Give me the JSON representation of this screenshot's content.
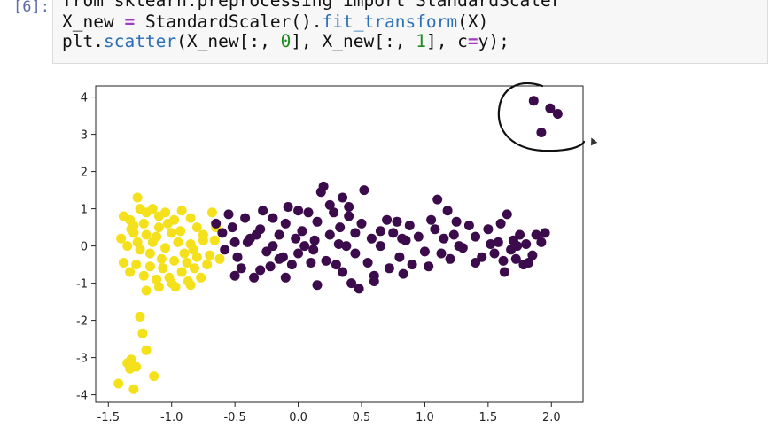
{
  "notebook": {
    "prompt": "[6]:",
    "code": {
      "line1": "from sklearn.preprocessing import StandardScaler",
      "line2_parts": [
        "X_new ",
        "=",
        " StandardScaler().",
        "fit_transform",
        "(X)"
      ],
      "line3_parts": [
        "plt.",
        "scatter",
        "(X_new[:, ",
        "0",
        "], X_new[:, ",
        "1",
        "], c",
        "=",
        "y);"
      ]
    }
  },
  "colors": {
    "yellow": "#f4e11c",
    "purple": "#3b0b4c",
    "axis": "#222222",
    "annotation": "#111111"
  },
  "chart_data": {
    "type": "scatter",
    "xlim": [
      -1.6,
      2.25
    ],
    "ylim": [
      -4.2,
      4.3
    ],
    "x_ticks": [
      -1.5,
      -1.0,
      -0.5,
      0.0,
      0.5,
      1.0,
      1.5,
      2.0
    ],
    "x_tick_labels": [
      "-1.5",
      "-1.0",
      "-0.5",
      "0.0",
      "0.5",
      "1.0",
      "1.5",
      "2.0"
    ],
    "y_ticks": [
      -4,
      -3,
      -2,
      -1,
      0,
      1,
      2,
      3,
      4
    ],
    "y_tick_labels": [
      "-4",
      "-3",
      "-2",
      "-1",
      "0",
      "1",
      "2",
      "3",
      "4"
    ],
    "grid": false,
    "annotation": "hand-drawn circle around outlier points near top-right",
    "series": [
      {
        "color_key": "yellow",
        "points": [
          [
            -1.42,
            -3.7
          ],
          [
            -1.3,
            -3.85
          ],
          [
            -1.33,
            -3.3
          ],
          [
            -1.28,
            -3.25
          ],
          [
            -1.32,
            -3.05
          ],
          [
            -1.35,
            -3.15
          ],
          [
            -1.14,
            -3.5
          ],
          [
            -1.2,
            -2.8
          ],
          [
            -1.23,
            -2.35
          ],
          [
            -1.25,
            -1.9
          ],
          [
            -1.38,
            0.8
          ],
          [
            -1.33,
            0.7
          ],
          [
            -1.27,
            1.3
          ],
          [
            -1.25,
            1.0
          ],
          [
            -1.3,
            0.55
          ],
          [
            -1.2,
            0.9
          ],
          [
            -1.15,
            1.0
          ],
          [
            -1.1,
            0.8
          ],
          [
            -1.05,
            0.9
          ],
          [
            -0.98,
            0.7
          ],
          [
            -0.92,
            0.95
          ],
          [
            -0.85,
            0.75
          ],
          [
            -0.8,
            0.5
          ],
          [
            -0.75,
            0.3
          ],
          [
            -0.68,
            0.9
          ],
          [
            -0.65,
            0.5
          ],
          [
            -1.4,
            0.2
          ],
          [
            -1.35,
            0.0
          ],
          [
            -1.3,
            0.35
          ],
          [
            -1.25,
            -0.1
          ],
          [
            -1.2,
            0.3
          ],
          [
            -1.15,
            0.1
          ],
          [
            -1.1,
            0.5
          ],
          [
            -1.05,
            -0.05
          ],
          [
            -1.0,
            0.35
          ],
          [
            -0.95,
            0.1
          ],
          [
            -0.9,
            -0.2
          ],
          [
            -0.85,
            0.05
          ],
          [
            -0.8,
            -0.3
          ],
          [
            -0.75,
            0.15
          ],
          [
            -0.7,
            -0.25
          ],
          [
            -0.66,
            0.15
          ],
          [
            -0.62,
            -0.35
          ],
          [
            -1.38,
            -0.45
          ],
          [
            -1.33,
            -0.7
          ],
          [
            -1.28,
            -0.5
          ],
          [
            -1.22,
            -0.8
          ],
          [
            -1.17,
            -0.55
          ],
          [
            -1.12,
            -0.9
          ],
          [
            -1.07,
            -0.6
          ],
          [
            -1.02,
            -0.85
          ],
          [
            -0.97,
            -1.1
          ],
          [
            -0.92,
            -0.7
          ],
          [
            -0.87,
            -0.95
          ],
          [
            -0.82,
            -0.6
          ],
          [
            -0.77,
            -0.85
          ],
          [
            -0.72,
            -0.5
          ],
          [
            -1.32,
            0.45
          ],
          [
            -1.22,
            0.6
          ],
          [
            -1.12,
            0.25
          ],
          [
            -1.03,
            0.6
          ],
          [
            -0.93,
            0.4
          ],
          [
            -0.83,
            -0.1
          ],
          [
            -1.27,
            0.1
          ],
          [
            -1.17,
            -0.2
          ],
          [
            -1.08,
            -0.35
          ],
          [
            -0.98,
            -0.4
          ],
          [
            -0.88,
            -0.45
          ],
          [
            -1.2,
            -1.2
          ],
          [
            -1.1,
            -1.1
          ],
          [
            -1.0,
            -1.0
          ],
          [
            -0.85,
            -1.05
          ]
        ]
      },
      {
        "color_key": "purple",
        "points": [
          [
            -0.65,
            0.6
          ],
          [
            -0.6,
            0.35
          ],
          [
            -0.55,
            0.85
          ],
          [
            -0.52,
            0.5
          ],
          [
            -0.5,
            0.1
          ],
          [
            -0.48,
            -0.3
          ],
          [
            -0.45,
            -0.6
          ],
          [
            -0.42,
            0.75
          ],
          [
            -0.38,
            0.2
          ],
          [
            -0.35,
            -0.85
          ],
          [
            -0.3,
            0.45
          ],
          [
            -0.28,
            0.95
          ],
          [
            -0.25,
            -0.15
          ],
          [
            -0.22,
            -0.55
          ],
          [
            -0.2,
            0.0
          ],
          [
            -0.15,
            0.3
          ],
          [
            -0.12,
            -0.3
          ],
          [
            -0.1,
            0.6
          ],
          [
            -0.08,
            1.05
          ],
          [
            -0.05,
            -0.5
          ],
          [
            -0.02,
            0.2
          ],
          [
            0.0,
            -0.2
          ],
          [
            0.03,
            0.4
          ],
          [
            0.05,
            0.0
          ],
          [
            0.08,
            0.9
          ],
          [
            0.1,
            -0.45
          ],
          [
            0.13,
            0.15
          ],
          [
            0.15,
            0.65
          ],
          [
            0.18,
            1.45
          ],
          [
            0.2,
            1.6
          ],
          [
            0.22,
            -0.4
          ],
          [
            0.25,
            0.3
          ],
          [
            0.28,
            0.9
          ],
          [
            0.3,
            -0.5
          ],
          [
            0.33,
            0.5
          ],
          [
            0.35,
            1.3
          ],
          [
            0.38,
            0.0
          ],
          [
            0.4,
            0.8
          ],
          [
            0.42,
            -1.0
          ],
          [
            0.45,
            -0.2
          ],
          [
            0.48,
            -1.15
          ],
          [
            0.5,
            0.6
          ],
          [
            0.52,
            1.5
          ],
          [
            0.55,
            -0.45
          ],
          [
            0.58,
            0.2
          ],
          [
            0.6,
            -0.8
          ],
          [
            0.65,
            0.0
          ],
          [
            0.7,
            0.7
          ],
          [
            0.72,
            -0.6
          ],
          [
            0.75,
            0.35
          ],
          [
            0.78,
            0.65
          ],
          [
            0.8,
            -0.3
          ],
          [
            0.83,
            -0.75
          ],
          [
            0.85,
            0.15
          ],
          [
            0.88,
            0.55
          ],
          [
            0.9,
            -0.5
          ],
          [
            0.95,
            0.25
          ],
          [
            1.0,
            -0.15
          ],
          [
            1.03,
            -0.55
          ],
          [
            1.05,
            0.7
          ],
          [
            1.08,
            0.45
          ],
          [
            1.1,
            1.25
          ],
          [
            1.13,
            -0.2
          ],
          [
            1.15,
            0.2
          ],
          [
            1.18,
            0.95
          ],
          [
            1.2,
            -0.35
          ],
          [
            1.23,
            0.3
          ],
          [
            1.25,
            0.65
          ],
          [
            1.3,
            -0.05
          ],
          [
            1.35,
            0.55
          ],
          [
            1.4,
            0.25
          ],
          [
            1.45,
            -0.3
          ],
          [
            1.5,
            0.45
          ],
          [
            1.55,
            -0.2
          ],
          [
            1.58,
            0.1
          ],
          [
            1.62,
            -0.4
          ],
          [
            1.65,
            0.85
          ],
          [
            1.68,
            -0.1
          ],
          [
            1.7,
            0.15
          ],
          [
            1.72,
            -0.35
          ],
          [
            1.75,
            0.3
          ],
          [
            1.78,
            -0.5
          ],
          [
            1.8,
            0.05
          ],
          [
            1.85,
            -0.25
          ],
          [
            1.88,
            0.3
          ],
          [
            1.92,
            0.1
          ],
          [
            1.95,
            0.35
          ],
          [
            1.63,
            -0.7
          ],
          [
            1.73,
            0.0
          ],
          [
            1.6,
            0.6
          ],
          [
            -0.5,
            -0.8
          ],
          [
            -0.3,
            -0.65
          ],
          [
            -0.1,
            -0.85
          ],
          [
            0.15,
            -1.05
          ],
          [
            0.35,
            -0.7
          ],
          [
            0.6,
            -0.95
          ],
          [
            0.82,
            0.2
          ],
          [
            -0.2,
            0.75
          ],
          [
            0.0,
            0.95
          ],
          [
            0.25,
            1.1
          ],
          [
            0.45,
            0.35
          ],
          [
            0.65,
            0.4
          ],
          [
            -0.4,
            0.1
          ],
          [
            -0.15,
            -0.35
          ],
          [
            0.12,
            -0.1
          ],
          [
            0.32,
            0.05
          ],
          [
            1.27,
            0.0
          ],
          [
            1.4,
            -0.45
          ],
          [
            1.52,
            0.05
          ],
          [
            1.82,
            -0.45
          ],
          [
            -0.58,
            -0.1
          ],
          [
            -0.33,
            0.3
          ],
          [
            0.4,
            1.05
          ],
          [
            1.86,
            3.9
          ],
          [
            1.99,
            3.7
          ],
          [
            2.05,
            3.55
          ],
          [
            1.92,
            3.05
          ]
        ]
      }
    ]
  }
}
